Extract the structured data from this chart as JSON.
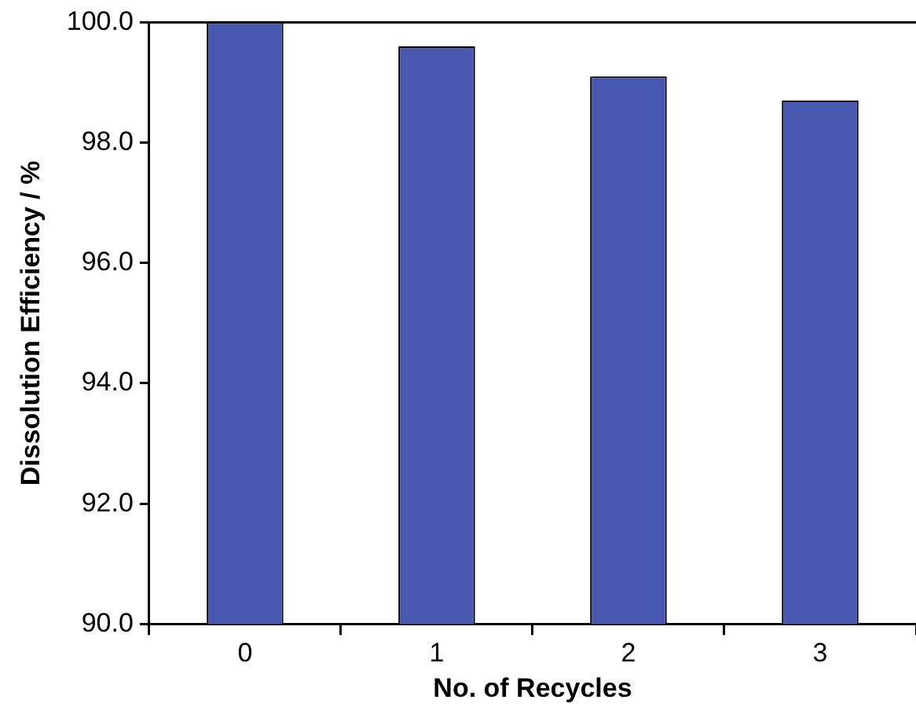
{
  "chart_data": {
    "type": "bar",
    "xlabel": "No. of Recycles",
    "ylabel": "Dissolution Efficiency / %",
    "categories": [
      "0",
      "1",
      "2",
      "3"
    ],
    "series": [
      {
        "color": "#4858b0",
        "values": [
          100.0,
          99.6,
          99.1,
          98.7
        ]
      }
    ],
    "ylim": [
      90,
      100
    ],
    "yticks": [
      {
        "value": 90,
        "label": "90.0"
      },
      {
        "value": 92,
        "label": "92.0"
      },
      {
        "value": 94,
        "label": "94.0"
      },
      {
        "value": 96,
        "label": "96.0"
      },
      {
        "value": 98,
        "label": "98.0"
      },
      {
        "value": 100,
        "label": "100.0"
      }
    ],
    "grid": false,
    "legend": false
  }
}
